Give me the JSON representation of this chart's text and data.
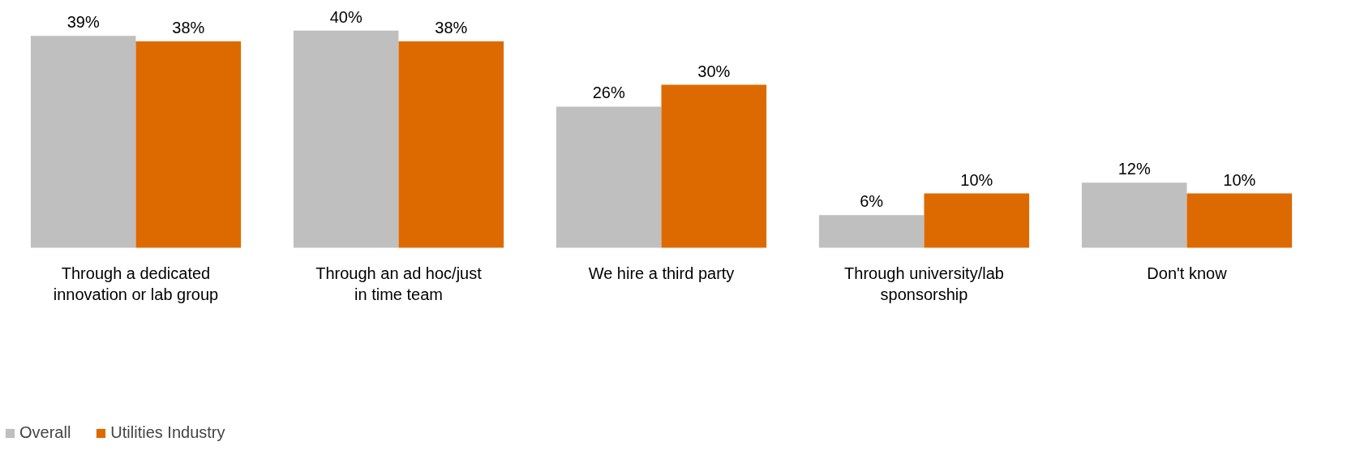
{
  "chart_data": {
    "type": "bar",
    "categories": [
      "Through a dedicated innovation or lab group",
      "Through an ad hoc/just in time team",
      "We hire a third party",
      "Through university/lab sponsorship",
      "Don't know"
    ],
    "series": [
      {
        "name": "Overall",
        "color": "#bfbfbf",
        "values": [
          39,
          40,
          26,
          6,
          12
        ],
        "value_labels": [
          "39%",
          "40%",
          "26%",
          "6%",
          "12%"
        ]
      },
      {
        "name": "Utilities Industry",
        "color": "#dd6a00",
        "values": [
          38,
          38,
          30,
          10,
          10
        ],
        "value_labels": [
          "38%",
          "38%",
          "30%",
          "10%",
          "10%"
        ]
      }
    ],
    "grid": false,
    "legend": "bottom"
  }
}
